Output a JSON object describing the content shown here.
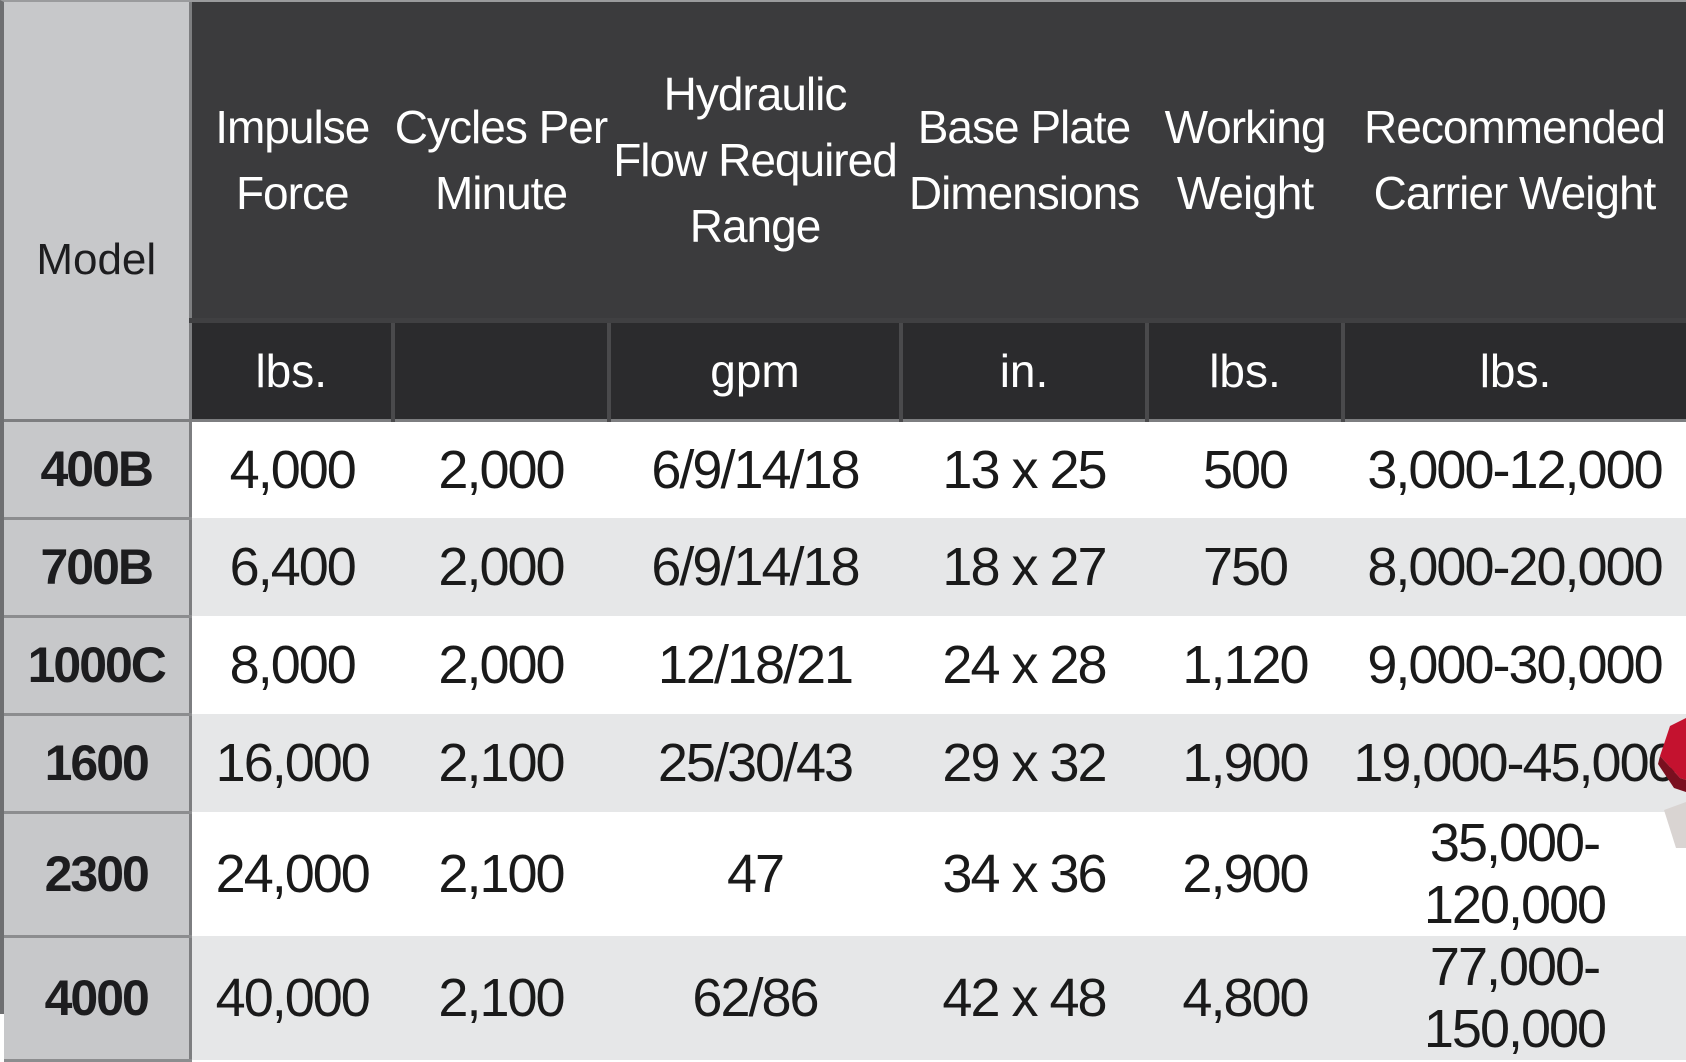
{
  "table": {
    "model_header": "Model",
    "columns": [
      {
        "lines": [
          "Impulse",
          "Force"
        ],
        "unit": "lbs."
      },
      {
        "lines": [
          "Cycles Per",
          "Minute"
        ],
        "unit": ""
      },
      {
        "lines": [
          "Hydraulic",
          "Flow Required",
          "Range"
        ],
        "unit": "gpm"
      },
      {
        "lines": [
          "Base Plate",
          "Dimensions"
        ],
        "unit": "in."
      },
      {
        "lines": [
          "Working",
          "Weight"
        ],
        "unit": "lbs."
      },
      {
        "lines": [
          "Recommended",
          "Carrier Weight"
        ],
        "unit": "lbs."
      }
    ],
    "rows": [
      {
        "model": "400B",
        "values": [
          "4,000",
          "2,000",
          "6/9/14/18",
          "13 x 25",
          "500",
          "3,000-12,000"
        ]
      },
      {
        "model": "700B",
        "values": [
          "6,400",
          "2,000",
          "6/9/14/18",
          "18 x 27",
          "750",
          "8,000-20,000"
        ]
      },
      {
        "model": "1000C",
        "values": [
          "8,000",
          "2,000",
          "12/18/21",
          "24 x 28",
          "1,120",
          "9,000-30,000"
        ]
      },
      {
        "model": "1600",
        "values": [
          "16,000",
          "2,100",
          "25/30/43",
          "29 x 32",
          "1,900",
          "19,000-45,000"
        ]
      },
      {
        "model": "2300",
        "values": [
          "24,000",
          "2,100",
          "47",
          "34 x 36",
          "2,900",
          "35,000-120,000"
        ]
      },
      {
        "model": "4000",
        "values": [
          "40,000",
          "2,100",
          "62/86",
          "42 x 48",
          "4,800",
          "77,000-150,000"
        ]
      }
    ]
  },
  "colors": {
    "header_dark": "#3b3b3d",
    "unit_row_dark": "#2b2b2d",
    "model_column": "#c7c8ca",
    "row_alt": "#e6e7e8",
    "product_accent": "#c4122f"
  }
}
